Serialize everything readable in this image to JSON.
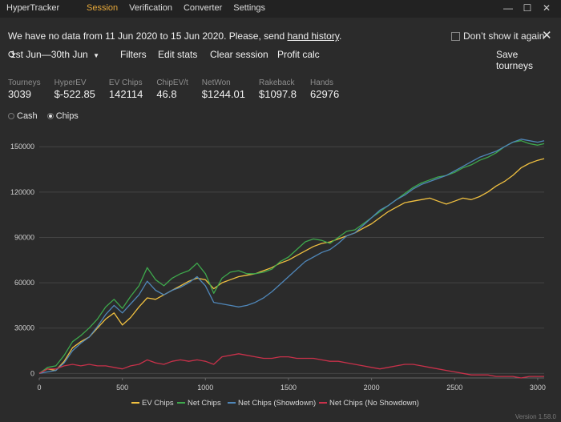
{
  "app_title": "HyperTracker",
  "menu": [
    "Session",
    "Verification",
    "Converter",
    "Settings"
  ],
  "window_controls": [
    "—",
    "☐",
    "✕"
  ],
  "notice": {
    "text": "We have no data from 11 Jun 2020 to 15 Jun 2020. Please, send ",
    "link": "hand history",
    "suffix": ".",
    "dont_show": "Don’t show it again",
    "close": "✕"
  },
  "toolbar": {
    "date_range": "1st Jun—30th Jun",
    "filters": "Filters",
    "edit_stats": "Edit stats",
    "clear_session": "Clear session",
    "profit_calc": "Profit calc",
    "save_tourneys": "Save tourneys"
  },
  "stats": [
    {
      "label": "Tourneys",
      "value": "3039"
    },
    {
      "label": "HyperEV",
      "value": "$-522.85"
    },
    {
      "label": "EV Chips",
      "value": "142114"
    },
    {
      "label": "ChipEV/t",
      "value": "46.8"
    },
    {
      "label": "NetWon",
      "value": "$1244.01"
    },
    {
      "label": "Rakeback",
      "value": "$1097.8"
    },
    {
      "label": "Hands",
      "value": "62976"
    }
  ],
  "mode": {
    "cash": "Cash",
    "chips": "Chips",
    "selected": "Chips"
  },
  "version": "Version 1.58.0",
  "chart_data": {
    "type": "line",
    "xlim": [
      0,
      3039
    ],
    "ylim": [
      -3000,
      157000
    ],
    "x_ticks": [
      0,
      500,
      1000,
      1500,
      2000,
      2500,
      3000
    ],
    "y_ticks": [
      0,
      30000,
      60000,
      90000,
      120000,
      150000
    ],
    "grid": "horizontal",
    "legend_position": "bottom",
    "series": [
      {
        "name": "EV Chips",
        "color": "#f0c040",
        "x": [
          0,
          50,
          100,
          150,
          200,
          250,
          300,
          350,
          400,
          450,
          500,
          550,
          600,
          650,
          700,
          750,
          800,
          850,
          900,
          950,
          1000,
          1050,
          1100,
          1150,
          1200,
          1250,
          1300,
          1350,
          1400,
          1450,
          1500,
          1550,
          1600,
          1650,
          1700,
          1750,
          1800,
          1850,
          1900,
          1950,
          2000,
          2050,
          2100,
          2150,
          2200,
          2250,
          2300,
          2350,
          2400,
          2450,
          2500,
          2550,
          2600,
          2650,
          2700,
          2750,
          2800,
          2850,
          2900,
          2950,
          3000,
          3039
        ],
        "values": [
          0,
          3000,
          2000,
          8000,
          17000,
          21000,
          24000,
          30000,
          36000,
          40000,
          32000,
          37000,
          44000,
          50000,
          49000,
          52000,
          55000,
          58000,
          61000,
          63000,
          62000,
          56000,
          60000,
          62000,
          64000,
          65000,
          66000,
          68000,
          70000,
          73000,
          75000,
          78000,
          81000,
          84000,
          86000,
          87000,
          89000,
          91000,
          93000,
          96000,
          99000,
          103000,
          107000,
          110000,
          113000,
          114000,
          115000,
          116000,
          114000,
          112000,
          114000,
          116000,
          115000,
          117000,
          120000,
          124000,
          127000,
          131000,
          136000,
          139000,
          141000,
          142114
        ]
      },
      {
        "name": "Net Chips",
        "color": "#3ea84c",
        "x": [
          0,
          50,
          100,
          150,
          200,
          250,
          300,
          350,
          400,
          450,
          500,
          550,
          600,
          650,
          700,
          750,
          800,
          850,
          900,
          950,
          1000,
          1050,
          1100,
          1150,
          1200,
          1250,
          1300,
          1350,
          1400,
          1450,
          1500,
          1550,
          1600,
          1650,
          1700,
          1750,
          1800,
          1850,
          1900,
          1950,
          2000,
          2050,
          2100,
          2150,
          2200,
          2250,
          2300,
          2350,
          2400,
          2450,
          2500,
          2550,
          2600,
          2650,
          2700,
          2750,
          2800,
          2850,
          2900,
          2950,
          3000,
          3039
        ],
        "values": [
          0,
          4000,
          5000,
          12000,
          21000,
          25000,
          30000,
          36000,
          44000,
          49000,
          43000,
          51000,
          58000,
          70000,
          62000,
          58000,
          63000,
          66000,
          68000,
          73000,
          66000,
          53000,
          63000,
          67000,
          68000,
          66000,
          66000,
          67000,
          69000,
          74000,
          77000,
          82000,
          87000,
          89000,
          88000,
          86000,
          90000,
          94000,
          95000,
          99000,
          103000,
          107000,
          111000,
          115000,
          119000,
          123000,
          126000,
          128000,
          130000,
          131000,
          133000,
          136000,
          138000,
          141000,
          143000,
          146000,
          150000,
          153000,
          154000,
          152000,
          151000,
          152000
        ]
      },
      {
        "name": "Net Chips (Showdown)",
        "color": "#4f86b8",
        "x": [
          0,
          50,
          100,
          150,
          200,
          250,
          300,
          350,
          400,
          450,
          500,
          550,
          600,
          650,
          700,
          750,
          800,
          850,
          900,
          950,
          1000,
          1050,
          1100,
          1150,
          1200,
          1250,
          1300,
          1350,
          1400,
          1450,
          1500,
          1550,
          1600,
          1650,
          1700,
          1750,
          1800,
          1850,
          1900,
          1950,
          2000,
          2050,
          2100,
          2150,
          2200,
          2250,
          2300,
          2350,
          2400,
          2450,
          2500,
          2550,
          2600,
          2650,
          2700,
          2750,
          2800,
          2850,
          2900,
          2950,
          3000,
          3039
        ],
        "values": [
          0,
          1000,
          2000,
          7000,
          15000,
          20000,
          24000,
          31000,
          39000,
          45000,
          40000,
          46000,
          52000,
          61000,
          55000,
          52000,
          55000,
          57000,
          60000,
          64000,
          58000,
          47000,
          46000,
          45000,
          44000,
          45000,
          47000,
          50000,
          54000,
          59000,
          64000,
          69000,
          74000,
          77000,
          80000,
          82000,
          86000,
          91000,
          93000,
          98000,
          103000,
          108000,
          111000,
          115000,
          118000,
          122000,
          125000,
          127000,
          129000,
          131000,
          134000,
          137000,
          140000,
          143000,
          145000,
          147000,
          150000,
          153000,
          155000,
          154000,
          153000,
          154000
        ]
      },
      {
        "name": "Net Chips (No Showdown)",
        "color": "#c8314a",
        "x": [
          0,
          50,
          100,
          150,
          200,
          250,
          300,
          350,
          400,
          450,
          500,
          550,
          600,
          650,
          700,
          750,
          800,
          850,
          900,
          950,
          1000,
          1050,
          1100,
          1150,
          1200,
          1250,
          1300,
          1350,
          1400,
          1450,
          1500,
          1550,
          1600,
          1650,
          1700,
          1750,
          1800,
          1850,
          1900,
          1950,
          2000,
          2050,
          2100,
          2150,
          2200,
          2250,
          2300,
          2350,
          2400,
          2450,
          2500,
          2550,
          2600,
          2650,
          2700,
          2750,
          2800,
          2850,
          2900,
          2950,
          3000,
          3039
        ],
        "values": [
          0,
          3000,
          3000,
          5000,
          6000,
          5000,
          6000,
          5000,
          5000,
          4000,
          3000,
          5000,
          6000,
          9000,
          7000,
          6000,
          8000,
          9000,
          8000,
          9000,
          8000,
          6000,
          11000,
          12000,
          13000,
          12000,
          11000,
          10000,
          10000,
          11000,
          11000,
          10000,
          10000,
          10000,
          9000,
          8000,
          8000,
          7000,
          6000,
          5000,
          4000,
          3000,
          4000,
          5000,
          6000,
          6000,
          5000,
          4000,
          3000,
          2000,
          1000,
          0,
          -1000,
          -1000,
          -1000,
          -2000,
          -2000,
          -2000,
          -3000,
          -2000,
          -2000,
          -2000
        ]
      }
    ]
  }
}
